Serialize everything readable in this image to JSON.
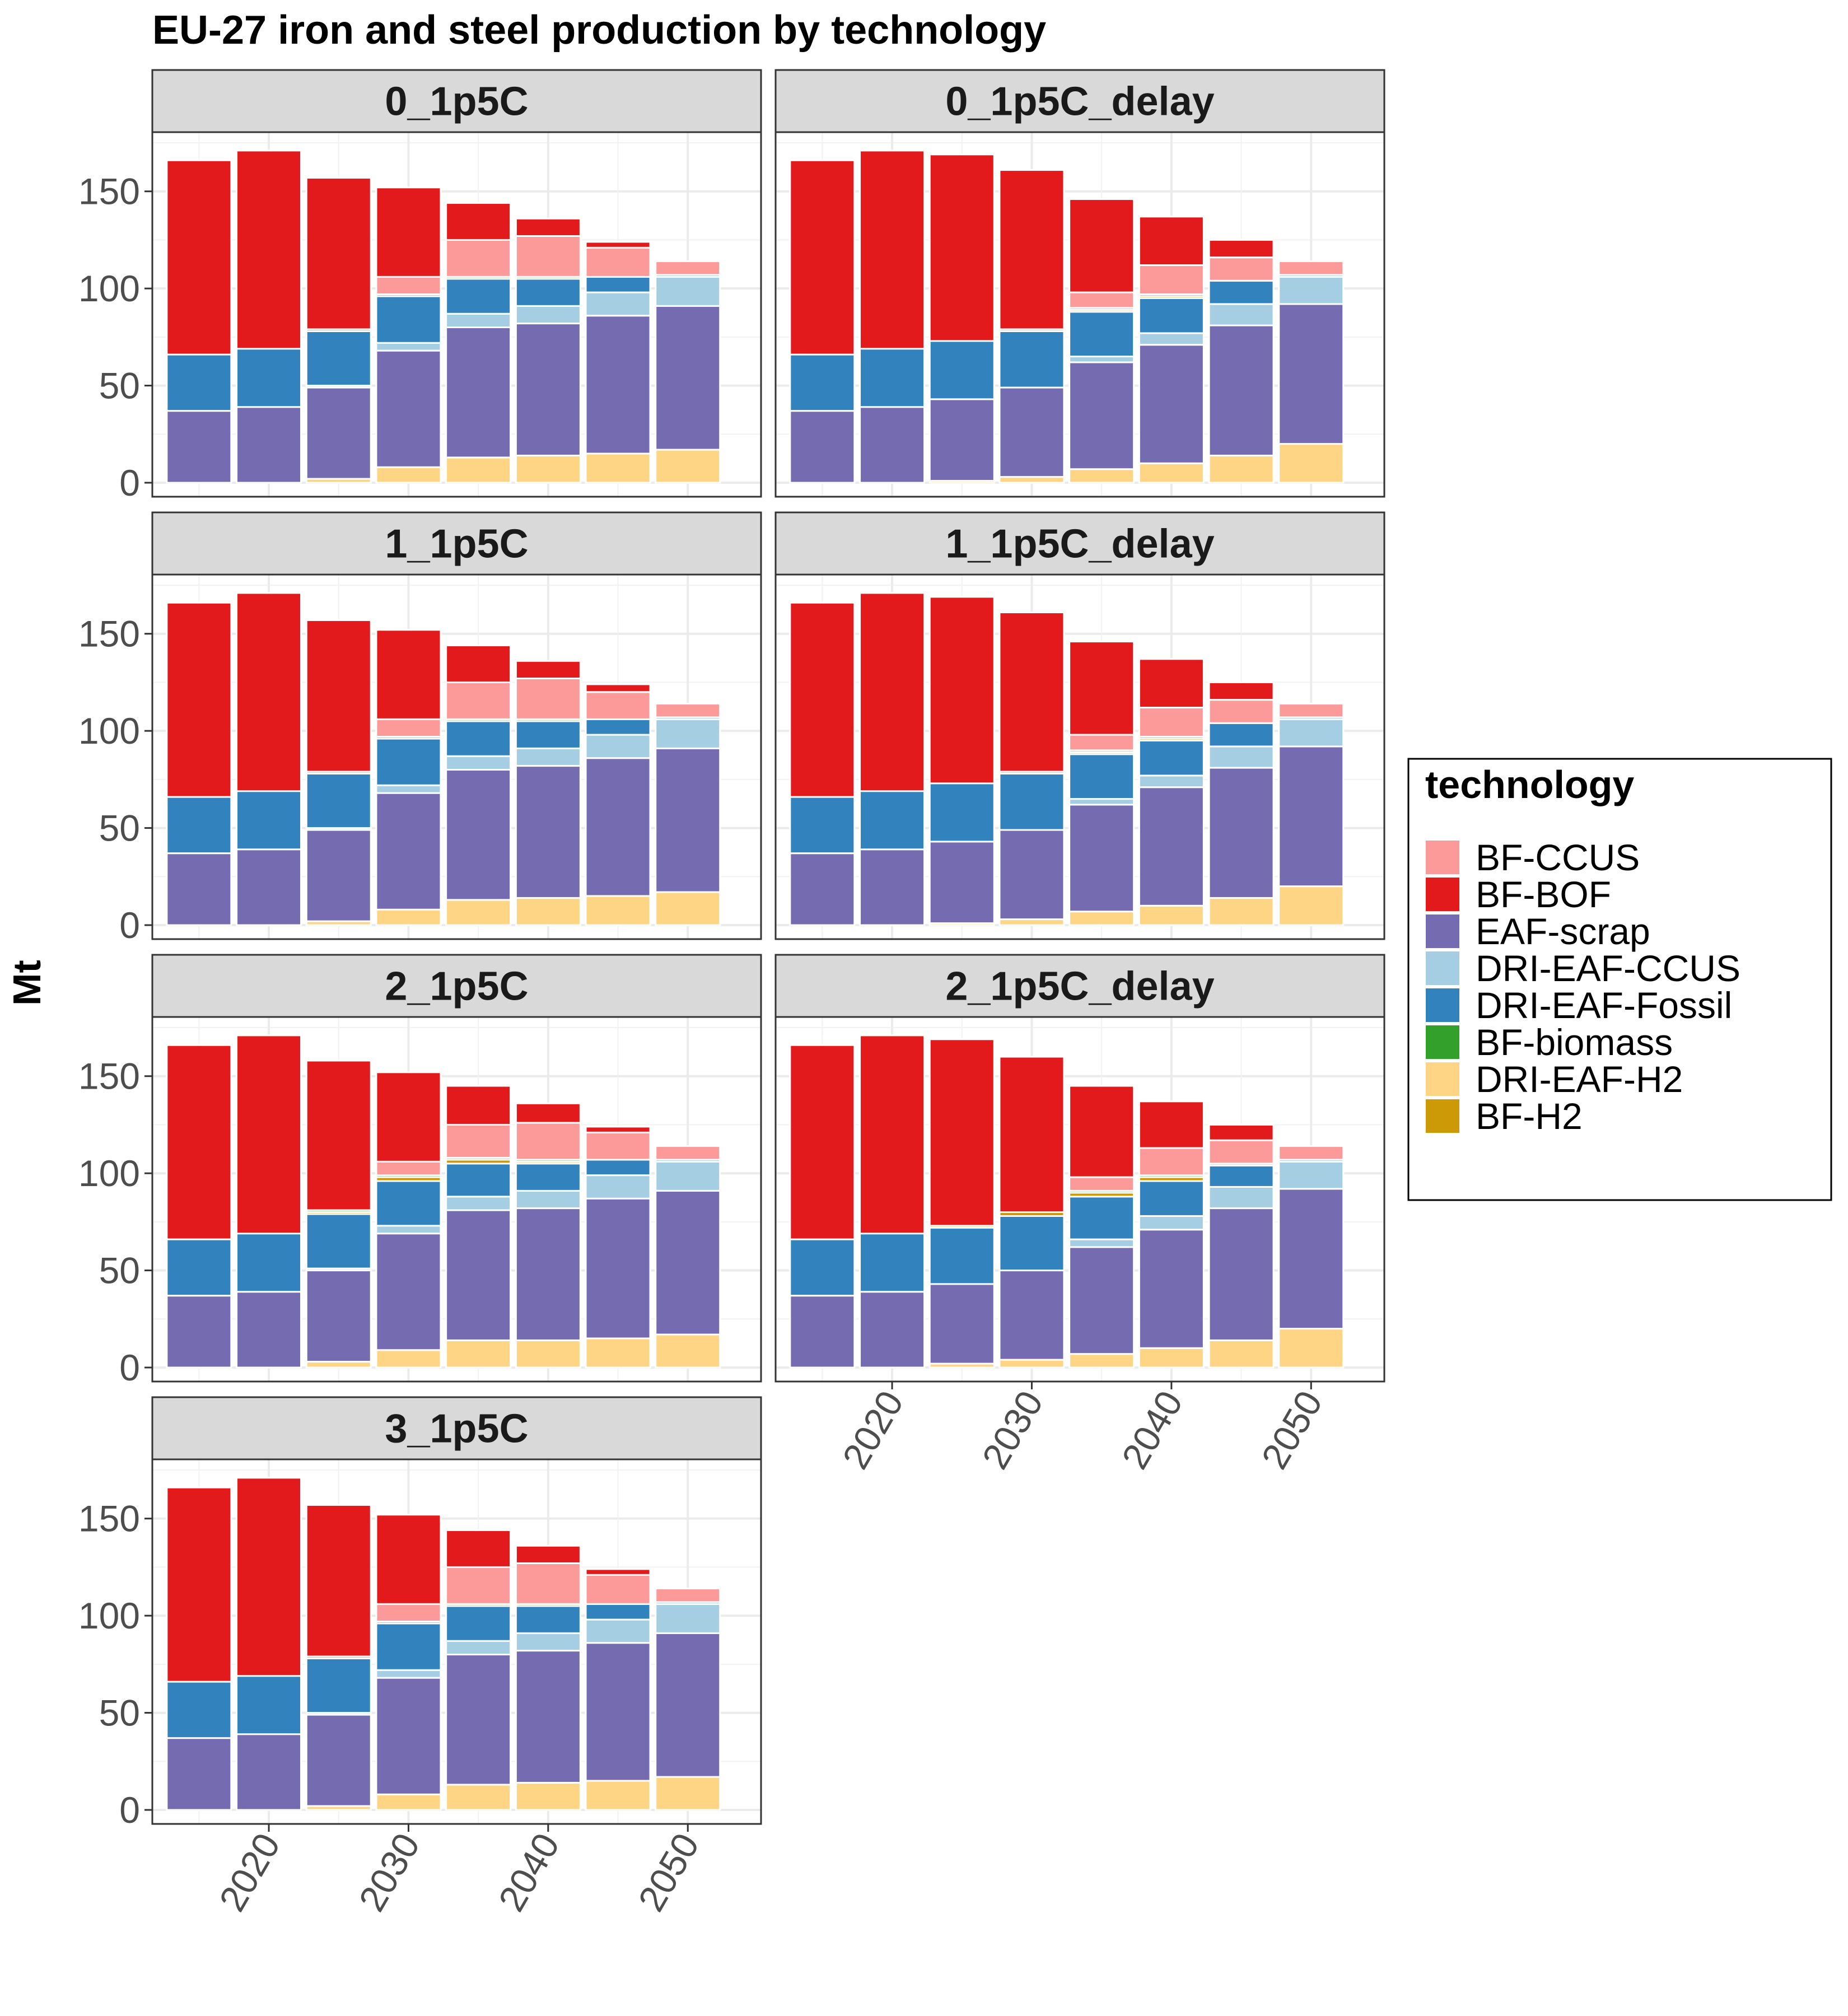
{
  "chart_data": {
    "type": "bar",
    "stacked": true,
    "title": "EU-27 iron and steel production by technology",
    "ylabel": "Mt",
    "xlabel": "",
    "ylim": [
      0,
      175
    ],
    "yticks": [
      0,
      50,
      100,
      150
    ],
    "xticks": [
      "2020",
      "2030",
      "2040",
      "2050"
    ],
    "grid": true,
    "legend_position": "right",
    "legend_title": "technology",
    "legend": [
      {
        "name": "BF-CCUS",
        "color": "#fb9a99"
      },
      {
        "name": "BF-BOF",
        "color": "#e31a1c"
      },
      {
        "name": "EAF-scrap",
        "color": "#756bb1"
      },
      {
        "name": "DRI-EAF-CCUS",
        "color": "#a6cee3"
      },
      {
        "name": "DRI-EAF-Fossil",
        "color": "#3182bd"
      },
      {
        "name": "BF-biomass",
        "color": "#33a02c"
      },
      {
        "name": "DRI-EAF-H2",
        "color": "#fdd585"
      },
      {
        "name": "BF-H2",
        "color": "#cc9a06"
      }
    ],
    "stack_order": [
      "DRI-EAF-H2",
      "EAF-scrap",
      "DRI-EAF-CCUS",
      "DRI-EAF-Fossil",
      "BF-H2",
      "BF-biomass",
      "BF-CCUS",
      "BF-BOF"
    ],
    "x": [
      2015,
      2020,
      2025,
      2030,
      2035,
      2040,
      2045,
      2050
    ],
    "panels": [
      {
        "name": "0_1p5C",
        "series": [
          {
            "name": "DRI-EAF-H2",
            "values": [
              0,
              0,
              2,
              8,
              13,
              14,
              15,
              17
            ]
          },
          {
            "name": "EAF-scrap",
            "values": [
              37,
              39,
              47,
              60,
              67,
              68,
              71,
              74
            ]
          },
          {
            "name": "DRI-EAF-CCUS",
            "values": [
              0,
              0,
              1,
              4,
              7,
              9,
              12,
              15
            ]
          },
          {
            "name": "DRI-EAF-Fossil",
            "values": [
              29,
              30,
              28,
              24,
              18,
              14,
              8,
              1
            ]
          },
          {
            "name": "BF-H2",
            "values": [
              0,
              0,
              0,
              0,
              0,
              0,
              0,
              0
            ]
          },
          {
            "name": "BF-biomass",
            "values": [
              0,
              0,
              1,
              1,
              1,
              1,
              0,
              0
            ]
          },
          {
            "name": "BF-CCUS",
            "values": [
              0,
              0,
              0,
              9,
              19,
              21,
              15,
              7
            ]
          },
          {
            "name": "BF-BOF",
            "values": [
              100,
              102,
              78,
              46,
              19,
              9,
              3,
              0
            ]
          }
        ]
      },
      {
        "name": "0_1p5C_delay",
        "series": [
          {
            "name": "DRI-EAF-H2",
            "values": [
              0,
              0,
              1,
              3,
              7,
              10,
              14,
              20
            ]
          },
          {
            "name": "EAF-scrap",
            "values": [
              37,
              39,
              42,
              46,
              55,
              61,
              67,
              72
            ]
          },
          {
            "name": "DRI-EAF-CCUS",
            "values": [
              0,
              0,
              0,
              0,
              3,
              6,
              11,
              14
            ]
          },
          {
            "name": "DRI-EAF-Fossil",
            "values": [
              29,
              30,
              30,
              29,
              23,
              18,
              12,
              1
            ]
          },
          {
            "name": "BF-H2",
            "values": [
              0,
              0,
              0,
              1,
              1,
              1,
              0,
              0
            ]
          },
          {
            "name": "BF-biomass",
            "values": [
              0,
              0,
              0,
              0,
              1,
              1,
              0,
              0
            ]
          },
          {
            "name": "BF-CCUS",
            "values": [
              0,
              0,
              0,
              0,
              8,
              15,
              12,
              7
            ]
          },
          {
            "name": "BF-BOF",
            "values": [
              100,
              102,
              96,
              82,
              48,
              25,
              9,
              0
            ]
          }
        ]
      },
      {
        "name": "1_1p5C",
        "series": [
          {
            "name": "DRI-EAF-H2",
            "values": [
              0,
              0,
              2,
              8,
              13,
              14,
              15,
              17
            ]
          },
          {
            "name": "EAF-scrap",
            "values": [
              37,
              39,
              47,
              60,
              67,
              68,
              71,
              74
            ]
          },
          {
            "name": "DRI-EAF-CCUS",
            "values": [
              0,
              0,
              1,
              4,
              7,
              9,
              12,
              15
            ]
          },
          {
            "name": "DRI-EAF-Fossil",
            "values": [
              29,
              30,
              28,
              24,
              18,
              14,
              8,
              1
            ]
          },
          {
            "name": "BF-H2",
            "values": [
              0,
              0,
              1,
              0,
              0,
              0,
              0,
              0
            ]
          },
          {
            "name": "BF-biomass",
            "values": [
              0,
              0,
              0,
              1,
              1,
              1,
              0,
              0
            ]
          },
          {
            "name": "BF-CCUS",
            "values": [
              0,
              0,
              0,
              9,
              19,
              21,
              14,
              7
            ]
          },
          {
            "name": "BF-BOF",
            "values": [
              100,
              102,
              78,
              46,
              19,
              9,
              4,
              0
            ]
          }
        ]
      },
      {
        "name": "1_1p5C_delay",
        "series": [
          {
            "name": "DRI-EAF-H2",
            "values": [
              0,
              0,
              1,
              3,
              7,
              10,
              14,
              20
            ]
          },
          {
            "name": "EAF-scrap",
            "values": [
              37,
              39,
              42,
              46,
              55,
              61,
              67,
              72
            ]
          },
          {
            "name": "DRI-EAF-CCUS",
            "values": [
              0,
              0,
              0,
              0,
              3,
              6,
              11,
              14
            ]
          },
          {
            "name": "DRI-EAF-Fossil",
            "values": [
              29,
              30,
              30,
              29,
              23,
              18,
              12,
              1
            ]
          },
          {
            "name": "BF-H2",
            "values": [
              0,
              0,
              0,
              1,
              1,
              1,
              0,
              0
            ]
          },
          {
            "name": "BF-biomass",
            "values": [
              0,
              0,
              0,
              0,
              1,
              1,
              0,
              0
            ]
          },
          {
            "name": "BF-CCUS",
            "values": [
              0,
              0,
              0,
              0,
              8,
              15,
              12,
              7
            ]
          },
          {
            "name": "BF-BOF",
            "values": [
              100,
              102,
              96,
              82,
              48,
              25,
              9,
              0
            ]
          }
        ]
      },
      {
        "name": "2_1p5C",
        "series": [
          {
            "name": "DRI-EAF-H2",
            "values": [
              0,
              0,
              3,
              9,
              14,
              14,
              15,
              17
            ]
          },
          {
            "name": "EAF-scrap",
            "values": [
              37,
              39,
              47,
              60,
              67,
              68,
              72,
              74
            ]
          },
          {
            "name": "DRI-EAF-CCUS",
            "values": [
              0,
              0,
              1,
              4,
              7,
              9,
              12,
              15
            ]
          },
          {
            "name": "DRI-EAF-Fossil",
            "values": [
              29,
              30,
              28,
              23,
              17,
              14,
              8,
              1
            ]
          },
          {
            "name": "BF-H2",
            "values": [
              0,
              0,
              1,
              2,
              2,
              1,
              0,
              0
            ]
          },
          {
            "name": "BF-biomass",
            "values": [
              0,
              0,
              1,
              1,
              1,
              1,
              0,
              0
            ]
          },
          {
            "name": "BF-CCUS",
            "values": [
              0,
              0,
              0,
              7,
              17,
              19,
              14,
              7
            ]
          },
          {
            "name": "BF-BOF",
            "values": [
              100,
              102,
              77,
              46,
              20,
              10,
              3,
              0
            ]
          }
        ]
      },
      {
        "name": "2_1p5C_delay",
        "series": [
          {
            "name": "DRI-EAF-H2",
            "values": [
              0,
              0,
              2,
              4,
              7,
              10,
              14,
              20
            ]
          },
          {
            "name": "EAF-scrap",
            "values": [
              37,
              39,
              41,
              46,
              55,
              61,
              68,
              72
            ]
          },
          {
            "name": "DRI-EAF-CCUS",
            "values": [
              0,
              0,
              0,
              0,
              4,
              7,
              11,
              14
            ]
          },
          {
            "name": "DRI-EAF-Fossil",
            "values": [
              29,
              30,
              29,
              28,
              22,
              18,
              11,
              1
            ]
          },
          {
            "name": "BF-H2",
            "values": [
              0,
              0,
              1,
              2,
              2,
              2,
              1,
              0
            ]
          },
          {
            "name": "BF-biomass",
            "values": [
              0,
              0,
              0,
              0,
              1,
              1,
              0,
              0
            ]
          },
          {
            "name": "BF-CCUS",
            "values": [
              0,
              0,
              0,
              0,
              7,
              14,
              12,
              7
            ]
          },
          {
            "name": "BF-BOF",
            "values": [
              100,
              102,
              96,
              80,
              47,
              24,
              8,
              0
            ]
          }
        ]
      },
      {
        "name": "3_1p5C",
        "series": [
          {
            "name": "DRI-EAF-H2",
            "values": [
              0,
              0,
              2,
              8,
              13,
              14,
              15,
              17
            ]
          },
          {
            "name": "EAF-scrap",
            "values": [
              37,
              39,
              47,
              60,
              67,
              68,
              71,
              74
            ]
          },
          {
            "name": "DRI-EAF-CCUS",
            "values": [
              0,
              0,
              1,
              4,
              7,
              9,
              12,
              15
            ]
          },
          {
            "name": "DRI-EAF-Fossil",
            "values": [
              29,
              30,
              28,
              24,
              18,
              14,
              8,
              1
            ]
          },
          {
            "name": "BF-H2",
            "values": [
              0,
              0,
              0,
              0,
              0,
              0,
              0,
              0
            ]
          },
          {
            "name": "BF-biomass",
            "values": [
              0,
              0,
              1,
              1,
              1,
              1,
              0,
              0
            ]
          },
          {
            "name": "BF-CCUS",
            "values": [
              0,
              0,
              0,
              9,
              19,
              21,
              15,
              7
            ]
          },
          {
            "name": "BF-BOF",
            "values": [
              100,
              102,
              78,
              46,
              19,
              9,
              3,
              0
            ]
          }
        ]
      }
    ]
  }
}
